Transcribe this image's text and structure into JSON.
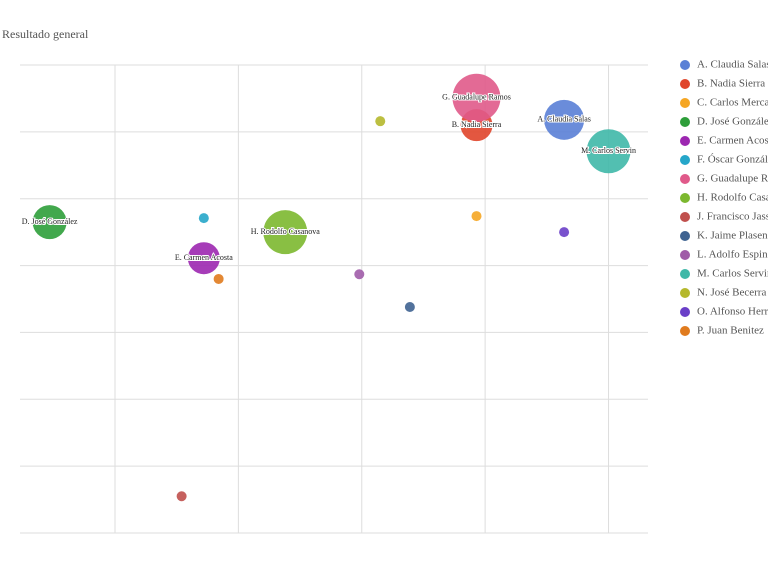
{
  "chart_data": {
    "type": "bubble",
    "title": "Resultado general",
    "xlim": [
      0.23,
      5.32
    ],
    "xticks": [
      1,
      2,
      3,
      4,
      5
    ],
    "ylim": [
      0,
      7
    ],
    "yticks": [
      0,
      1,
      2,
      3,
      4,
      5,
      6,
      7
    ],
    "grid": true,
    "series": [
      {
        "name": "A. Claudia Salas",
        "color": "#5a80d6",
        "x": [
          4.64
        ],
        "y": [
          6.18
        ],
        "size": [
          20
        ]
      },
      {
        "name": "B. Nadia Sierra",
        "color": "#e0452b",
        "x": [
          3.93
        ],
        "y": [
          6.1
        ],
        "size": [
          16
        ]
      },
      {
        "name": "C. Carlos Mercado",
        "color": "#f5a623",
        "x": [
          3.93
        ],
        "y": [
          4.74
        ],
        "size": [
          5
        ]
      },
      {
        "name": "D. José González",
        "color": "#2e9e3a",
        "x": [
          0.47
        ],
        "y": [
          4.65
        ],
        "size": [
          17
        ]
      },
      {
        "name": "E. Carmen Acosta",
        "color": "#9c27b0",
        "x": [
          1.72
        ],
        "y": [
          4.11
        ],
        "size": [
          16
        ]
      },
      {
        "name": "F. Óscar González",
        "color": "#26a6c9",
        "x": [
          1.72
        ],
        "y": [
          4.71
        ],
        "size": [
          5
        ]
      },
      {
        "name": "G. Guadalupe Ramos",
        "color": "#e05a8a",
        "x": [
          3.93
        ],
        "y": [
          6.51
        ],
        "size": [
          24
        ]
      },
      {
        "name": "H. Rodolfo Casanova",
        "color": "#7cb82f",
        "x": [
          2.38
        ],
        "y": [
          4.5
        ],
        "size": [
          22
        ]
      },
      {
        "name": "J. Francisco Jasso",
        "color": "#c0504d",
        "x": [
          1.54
        ],
        "y": [
          0.55
        ],
        "size": [
          5
        ]
      },
      {
        "name": "K. Jaime Plasencia",
        "color": "#3f6391",
        "x": [
          3.39
        ],
        "y": [
          3.38
        ],
        "size": [
          5
        ]
      },
      {
        "name": "L. Adolfo Espinosa",
        "color": "#a05ca8",
        "x": [
          2.98
        ],
        "y": [
          3.87
        ],
        "size": [
          5
        ]
      },
      {
        "name": "M. Carlos Servin",
        "color": "#3fb8a8",
        "x": [
          5.0
        ],
        "y": [
          5.71
        ],
        "size": [
          22
        ]
      },
      {
        "name": "N. José Becerra",
        "color": "#b5b82c",
        "x": [
          3.15
        ],
        "y": [
          6.16
        ],
        "size": [
          5
        ]
      },
      {
        "name": "O. Alfonso Herrera",
        "color": "#6a3fc8",
        "x": [
          4.64
        ],
        "y": [
          4.5
        ],
        "size": [
          5
        ]
      },
      {
        "name": "P. Juan Benitez",
        "color": "#e07b1e",
        "x": [
          1.84
        ],
        "y": [
          3.8
        ],
        "size": [
          5
        ]
      }
    ]
  }
}
